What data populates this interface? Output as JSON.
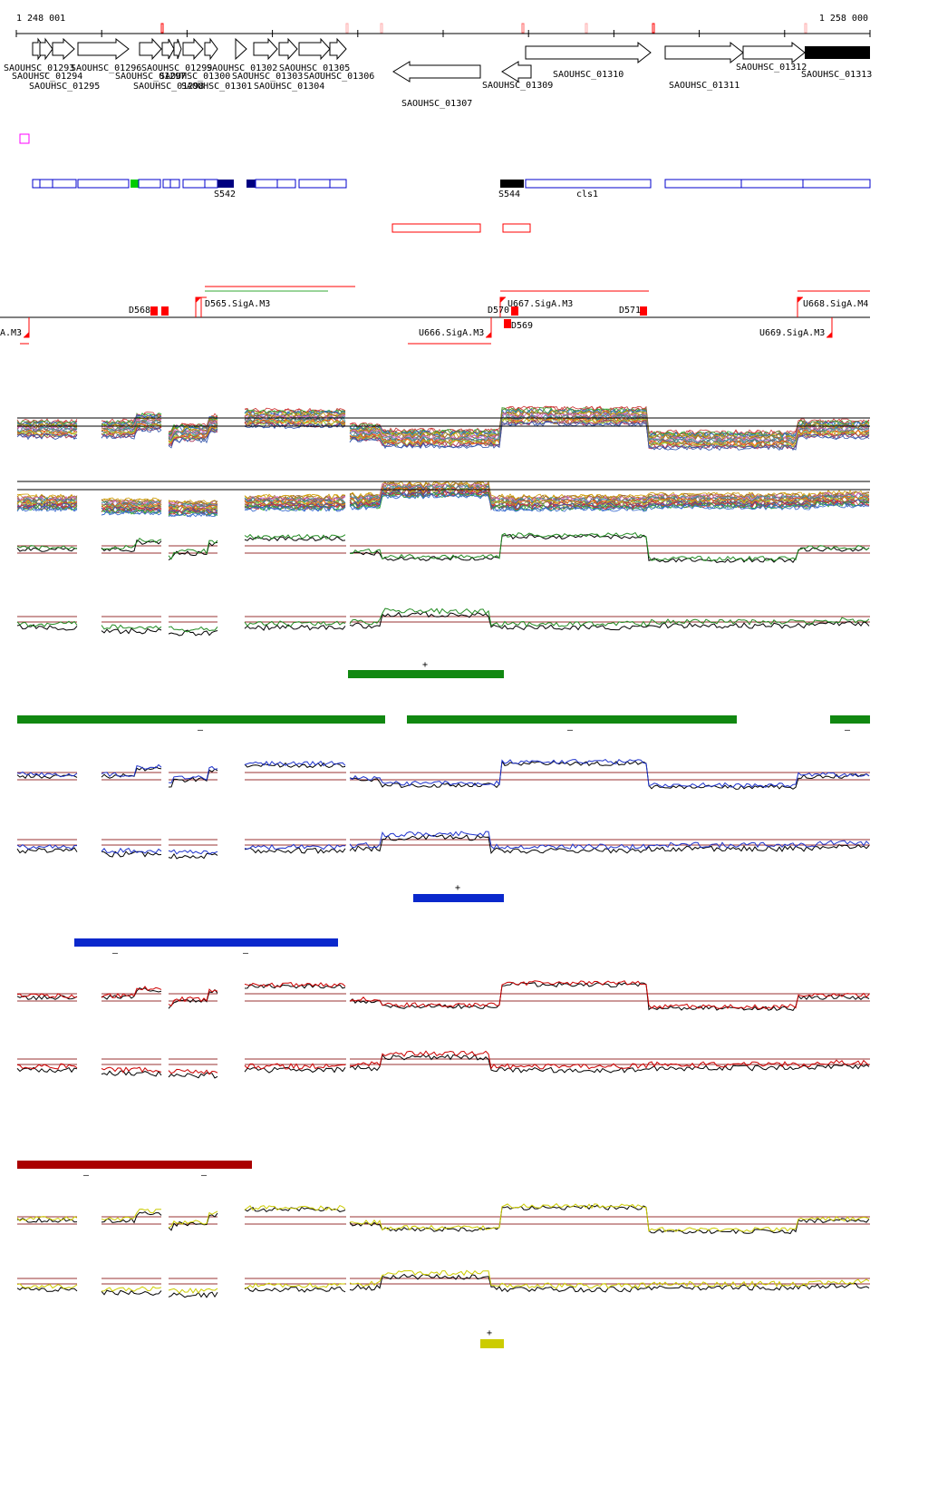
{
  "scale": {
    "start": "1 248 001",
    "end": "1 258 000"
  },
  "genes": [
    {
      "label": "SAOUHSC_01293",
      "strand": "+"
    },
    {
      "label": "SAOUHSC_01294",
      "strand": "+"
    },
    {
      "label": "SAOUHSC_01295",
      "strand": "+"
    },
    {
      "label": "SAOUHSC_01296",
      "strand": "+"
    },
    {
      "label": "SAOUHSC_01297",
      "strand": "+"
    },
    {
      "label": "SAOUHSC_01298",
      "strand": "+"
    },
    {
      "label": "SAOUHSC_01299",
      "strand": "+"
    },
    {
      "label": "SAOUHSC_01300",
      "strand": "+"
    },
    {
      "label": "SAOUHSC_01301",
      "strand": "+"
    },
    {
      "label": "SAOUHSC_01302",
      "strand": "+"
    },
    {
      "label": "SAOUHSC_01303",
      "strand": "+"
    },
    {
      "label": "SAOUHSC_01304",
      "strand": "+"
    },
    {
      "label": "SAOUHSC_01305",
      "strand": "+"
    },
    {
      "label": "SAOUHSC_01306",
      "strand": "+"
    },
    {
      "label": "SAOUHSC_01307",
      "strand": "-"
    },
    {
      "label": "SAOUHSC_01309",
      "strand": "-"
    },
    {
      "label": "SAOUHSC_01310",
      "strand": "+"
    },
    {
      "label": "SAOUHSC_01311",
      "strand": "+"
    },
    {
      "label": "SAOUHSC_01312",
      "strand": "+"
    },
    {
      "label": "SAOUHSC_01313",
      "strand": "+"
    }
  ],
  "segments": [
    {
      "label": "S542"
    },
    {
      "label": "S544"
    },
    {
      "label": "cls1"
    }
  ],
  "regulation": [
    {
      "label": "D568"
    },
    {
      "label": "D565.SigA.M3"
    },
    {
      "label": "U666.SigA.M3"
    },
    {
      "label": "U667.SigA.M3"
    },
    {
      "label": "D570"
    },
    {
      "label": "D569"
    },
    {
      "label": "D571"
    },
    {
      "label": "U668.SigA.M4"
    },
    {
      "label": "U669.SigA.M3"
    },
    {
      "label": "A.M3"
    }
  ],
  "strand_marks": {
    "plus": "+",
    "minus": "–"
  },
  "colors": {
    "gene_stroke": "#000000",
    "segment_blue": "#0000cc",
    "segment_navy": "#000080",
    "segment_green": "#00cc00",
    "promoter_red": "#ff0000",
    "threshold_line": "#993333",
    "green_track": "#228B22",
    "blue_track": "#1f33cc",
    "red_track": "#cc0000",
    "yellow_track": "#cccc00"
  }
}
